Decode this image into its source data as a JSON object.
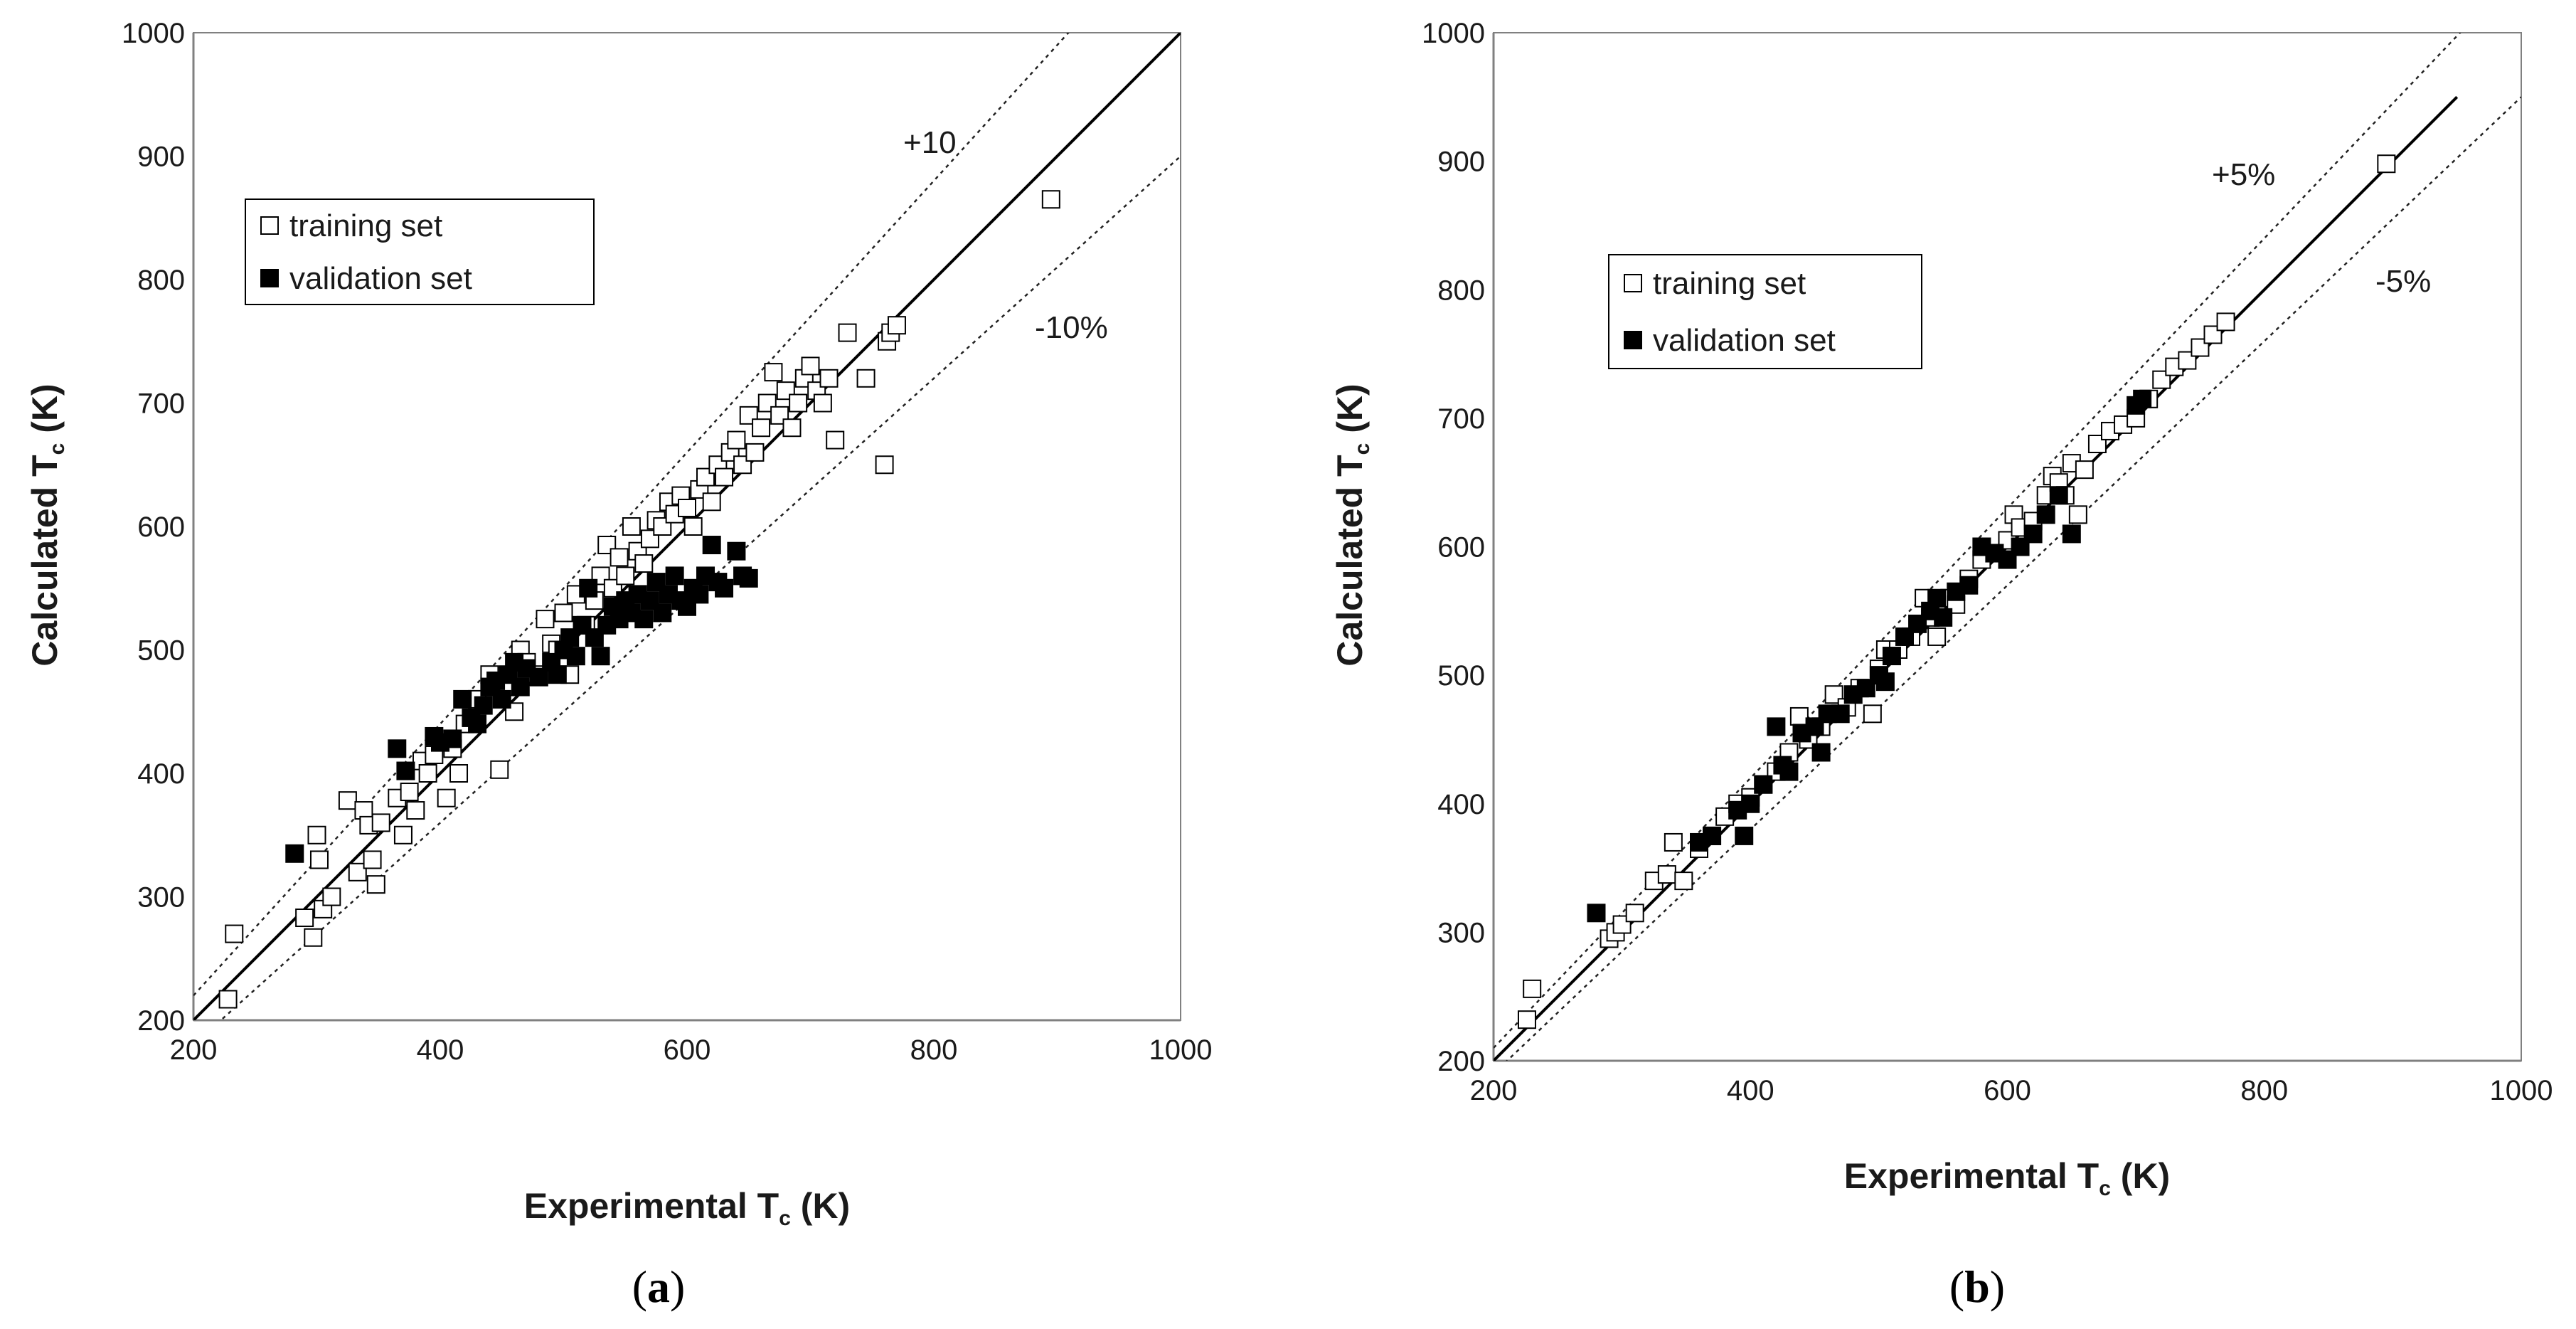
{
  "chart_data": [
    {
      "type": "scatter",
      "panel": "a",
      "caption_open": "(",
      "caption_letter": "a",
      "caption_close": ")",
      "xlabel_main": "Experimental  T",
      "xlabel_sub": "c",
      "xlabel_unit": " (K)",
      "ylabel_main": "Calculated T",
      "ylabel_sub": "c",
      "ylabel_unit": " (K)",
      "xlim": [
        200,
        1000
      ],
      "ylim": [
        200,
        1000
      ],
      "xticks": [
        "200",
        "400",
        "600",
        "800",
        "1000"
      ],
      "yticks": [
        "200",
        "300",
        "400",
        "500",
        "600",
        "700",
        "800",
        "900",
        "1000"
      ],
      "upper_label": "+10",
      "lower_label": "-10%",
      "band_factor": 0.1,
      "line_end": 1000,
      "legend": [
        {
          "label": "training set",
          "style": "open-square"
        },
        {
          "label": "validation set",
          "style": "filled-square"
        }
      ],
      "series": [
        {
          "name": "training set",
          "style": "open",
          "points": [
            [
              228,
              217
            ],
            [
              233,
              270
            ],
            [
              290,
              283
            ],
            [
              297,
              267
            ],
            [
              300,
              350
            ],
            [
              302,
              330
            ],
            [
              305,
              290
            ],
            [
              312,
              300
            ],
            [
              325,
              378
            ],
            [
              333,
              320
            ],
            [
              338,
              370
            ],
            [
              342,
              358
            ],
            [
              345,
              330
            ],
            [
              348,
              310
            ],
            [
              352,
              360
            ],
            [
              365,
              380
            ],
            [
              370,
              350
            ],
            [
              375,
              385
            ],
            [
              380,
              370
            ],
            [
              385,
              410
            ],
            [
              390,
              400
            ],
            [
              395,
              415
            ],
            [
              405,
              380
            ],
            [
              410,
              420
            ],
            [
              415,
              400
            ],
            [
              420,
              440
            ],
            [
              430,
              460
            ],
            [
              440,
              480
            ],
            [
              448,
              403
            ],
            [
              455,
              470
            ],
            [
              460,
              450
            ],
            [
              465,
              500
            ],
            [
              470,
              490
            ],
            [
              480,
              480
            ],
            [
              485,
              525
            ],
            [
              490,
              505
            ],
            [
              495,
              500
            ],
            [
              500,
              530
            ],
            [
              505,
              480
            ],
            [
              510,
              545
            ],
            [
              518,
              520
            ],
            [
              525,
              540
            ],
            [
              530,
              560
            ],
            [
              535,
              585
            ],
            [
              540,
              550
            ],
            [
              545,
              575
            ],
            [
              550,
              560
            ],
            [
              555,
              600
            ],
            [
              560,
              580
            ],
            [
              565,
              570
            ],
            [
              570,
              590
            ],
            [
              575,
              605
            ],
            [
              580,
              600
            ],
            [
              585,
              620
            ],
            [
              590,
              610
            ],
            [
              595,
              625
            ],
            [
              600,
              615
            ],
            [
              605,
              600
            ],
            [
              610,
              630
            ],
            [
              615,
              640
            ],
            [
              620,
              620
            ],
            [
              625,
              650
            ],
            [
              630,
              640
            ],
            [
              635,
              660
            ],
            [
              640,
              670
            ],
            [
              645,
              650
            ],
            [
              650,
              690
            ],
            [
              655,
              660
            ],
            [
              660,
              680
            ],
            [
              665,
              700
            ],
            [
              670,
              725
            ],
            [
              675,
              690
            ],
            [
              680,
              710
            ],
            [
              685,
              680
            ],
            [
              690,
              700
            ],
            [
              695,
              720
            ],
            [
              700,
              730
            ],
            [
              705,
              710
            ],
            [
              710,
              700
            ],
            [
              715,
              720
            ],
            [
              720,
              670
            ],
            [
              730,
              757
            ],
            [
              745,
              720
            ],
            [
              760,
              650
            ],
            [
              762,
              750
            ],
            [
              765,
              757
            ],
            [
              770,
              763
            ],
            [
              895,
              865
            ]
          ]
        },
        {
          "name": "validation set",
          "style": "filled",
          "points": [
            [
              282,
              335
            ],
            [
              365,
              420
            ],
            [
              372,
              402
            ],
            [
              395,
              430
            ],
            [
              400,
              425
            ],
            [
              410,
              428
            ],
            [
              418,
              460
            ],
            [
              425,
              445
            ],
            [
              430,
              440
            ],
            [
              435,
              455
            ],
            [
              440,
              470
            ],
            [
              445,
              475
            ],
            [
              450,
              460
            ],
            [
              455,
              480
            ],
            [
              460,
              490
            ],
            [
              465,
              470
            ],
            [
              470,
              485
            ],
            [
              480,
              478
            ],
            [
              490,
              490
            ],
            [
              495,
              480
            ],
            [
              500,
              500
            ],
            [
              505,
              510
            ],
            [
              510,
              495
            ],
            [
              515,
              520
            ],
            [
              520,
              550
            ],
            [
              525,
              510
            ],
            [
              530,
              495
            ],
            [
              535,
              520
            ],
            [
              540,
              535
            ],
            [
              545,
              525
            ],
            [
              550,
              540
            ],
            [
              555,
              530
            ],
            [
              560,
              545
            ],
            [
              565,
              525
            ],
            [
              570,
              540
            ],
            [
              575,
              555
            ],
            [
              580,
              530
            ],
            [
              585,
              545
            ],
            [
              590,
              560
            ],
            [
              595,
              540
            ],
            [
              600,
              535
            ],
            [
              605,
              550
            ],
            [
              610,
              545
            ],
            [
              615,
              560
            ],
            [
              620,
              585
            ],
            [
              625,
              555
            ],
            [
              630,
              550
            ],
            [
              640,
              580
            ],
            [
              645,
              560
            ],
            [
              650,
              558
            ]
          ]
        }
      ]
    },
    {
      "type": "scatter",
      "panel": "b",
      "caption_open": "(",
      "caption_letter": "b",
      "caption_close": ")",
      "xlabel_main": "Experimental  T",
      "xlabel_sub": "c",
      "xlabel_unit": " (K)",
      "ylabel_main": "Calculated T",
      "ylabel_sub": "c",
      "ylabel_unit": " (K)",
      "xlim": [
        200,
        1000
      ],
      "ylim": [
        200,
        1000
      ],
      "xticks": [
        "200",
        "400",
        "600",
        "800",
        "1000"
      ],
      "yticks": [
        "200",
        "300",
        "400",
        "500",
        "600",
        "700",
        "800",
        "900",
        "1000"
      ],
      "upper_label": "+5%",
      "lower_label": "-5%",
      "band_factor": 0.05,
      "line_end": 950,
      "legend": [
        {
          "label": "training set",
          "style": "open-square"
        },
        {
          "label": "validation set",
          "style": "filled-square"
        }
      ],
      "series": [
        {
          "name": "training set",
          "style": "open",
          "points": [
            [
              226,
              232
            ],
            [
              230,
              256
            ],
            [
              290,
              295
            ],
            [
              295,
              300
            ],
            [
              300,
              306
            ],
            [
              310,
              315
            ],
            [
              325,
              340
            ],
            [
              335,
              345
            ],
            [
              340,
              370
            ],
            [
              348,
              340
            ],
            [
              360,
              365
            ],
            [
              370,
              375
            ],
            [
              380,
              390
            ],
            [
              390,
              400
            ],
            [
              400,
              405
            ],
            [
              410,
              415
            ],
            [
              420,
              425
            ],
            [
              430,
              440
            ],
            [
              438,
              468
            ],
            [
              445,
              450
            ],
            [
              455,
              460
            ],
            [
              465,
              485
            ],
            [
              475,
              475
            ],
            [
              485,
              490
            ],
            [
              495,
              470
            ],
            [
              500,
              505
            ],
            [
              505,
              520
            ],
            [
              515,
              520
            ],
            [
              525,
              530
            ],
            [
              535,
              560
            ],
            [
              540,
              545
            ],
            [
              545,
              530
            ],
            [
              555,
              560
            ],
            [
              560,
              555
            ],
            [
              570,
              575
            ],
            [
              580,
              590
            ],
            [
              590,
              595
            ],
            [
              600,
              605
            ],
            [
              605,
              625
            ],
            [
              610,
              615
            ],
            [
              620,
              620
            ],
            [
              630,
              640
            ],
            [
              635,
              655
            ],
            [
              640,
              650
            ],
            [
              645,
              640
            ],
            [
              650,
              665
            ],
            [
              655,
              625
            ],
            [
              660,
              660
            ],
            [
              670,
              680
            ],
            [
              680,
              690
            ],
            [
              690,
              695
            ],
            [
              700,
              700
            ],
            [
              710,
              715
            ],
            [
              720,
              730
            ],
            [
              730,
              740
            ],
            [
              740,
              745
            ],
            [
              750,
              755
            ],
            [
              760,
              765
            ],
            [
              770,
              775
            ],
            [
              895,
              898
            ]
          ]
        },
        {
          "name": "validation set",
          "style": "filled",
          "points": [
            [
              280,
              315
            ],
            [
              360,
              370
            ],
            [
              370,
              375
            ],
            [
              390,
              395
            ],
            [
              395,
              375
            ],
            [
              400,
              400
            ],
            [
              410,
              415
            ],
            [
              420,
              460
            ],
            [
              425,
              430
            ],
            [
              430,
              425
            ],
            [
              440,
              455
            ],
            [
              450,
              460
            ],
            [
              455,
              440
            ],
            [
              460,
              470
            ],
            [
              470,
              470
            ],
            [
              480,
              485
            ],
            [
              490,
              490
            ],
            [
              500,
              500
            ],
            [
              505,
              495
            ],
            [
              510,
              515
            ],
            [
              520,
              530
            ],
            [
              530,
              540
            ],
            [
              540,
              550
            ],
            [
              545,
              560
            ],
            [
              550,
              545
            ],
            [
              560,
              565
            ],
            [
              570,
              570
            ],
            [
              580,
              600
            ],
            [
              590,
              595
            ],
            [
              600,
              590
            ],
            [
              610,
              600
            ],
            [
              620,
              610
            ],
            [
              630,
              625
            ],
            [
              640,
              640
            ],
            [
              650,
              610
            ],
            [
              700,
              710
            ],
            [
              705,
              715
            ]
          ]
        }
      ]
    }
  ]
}
